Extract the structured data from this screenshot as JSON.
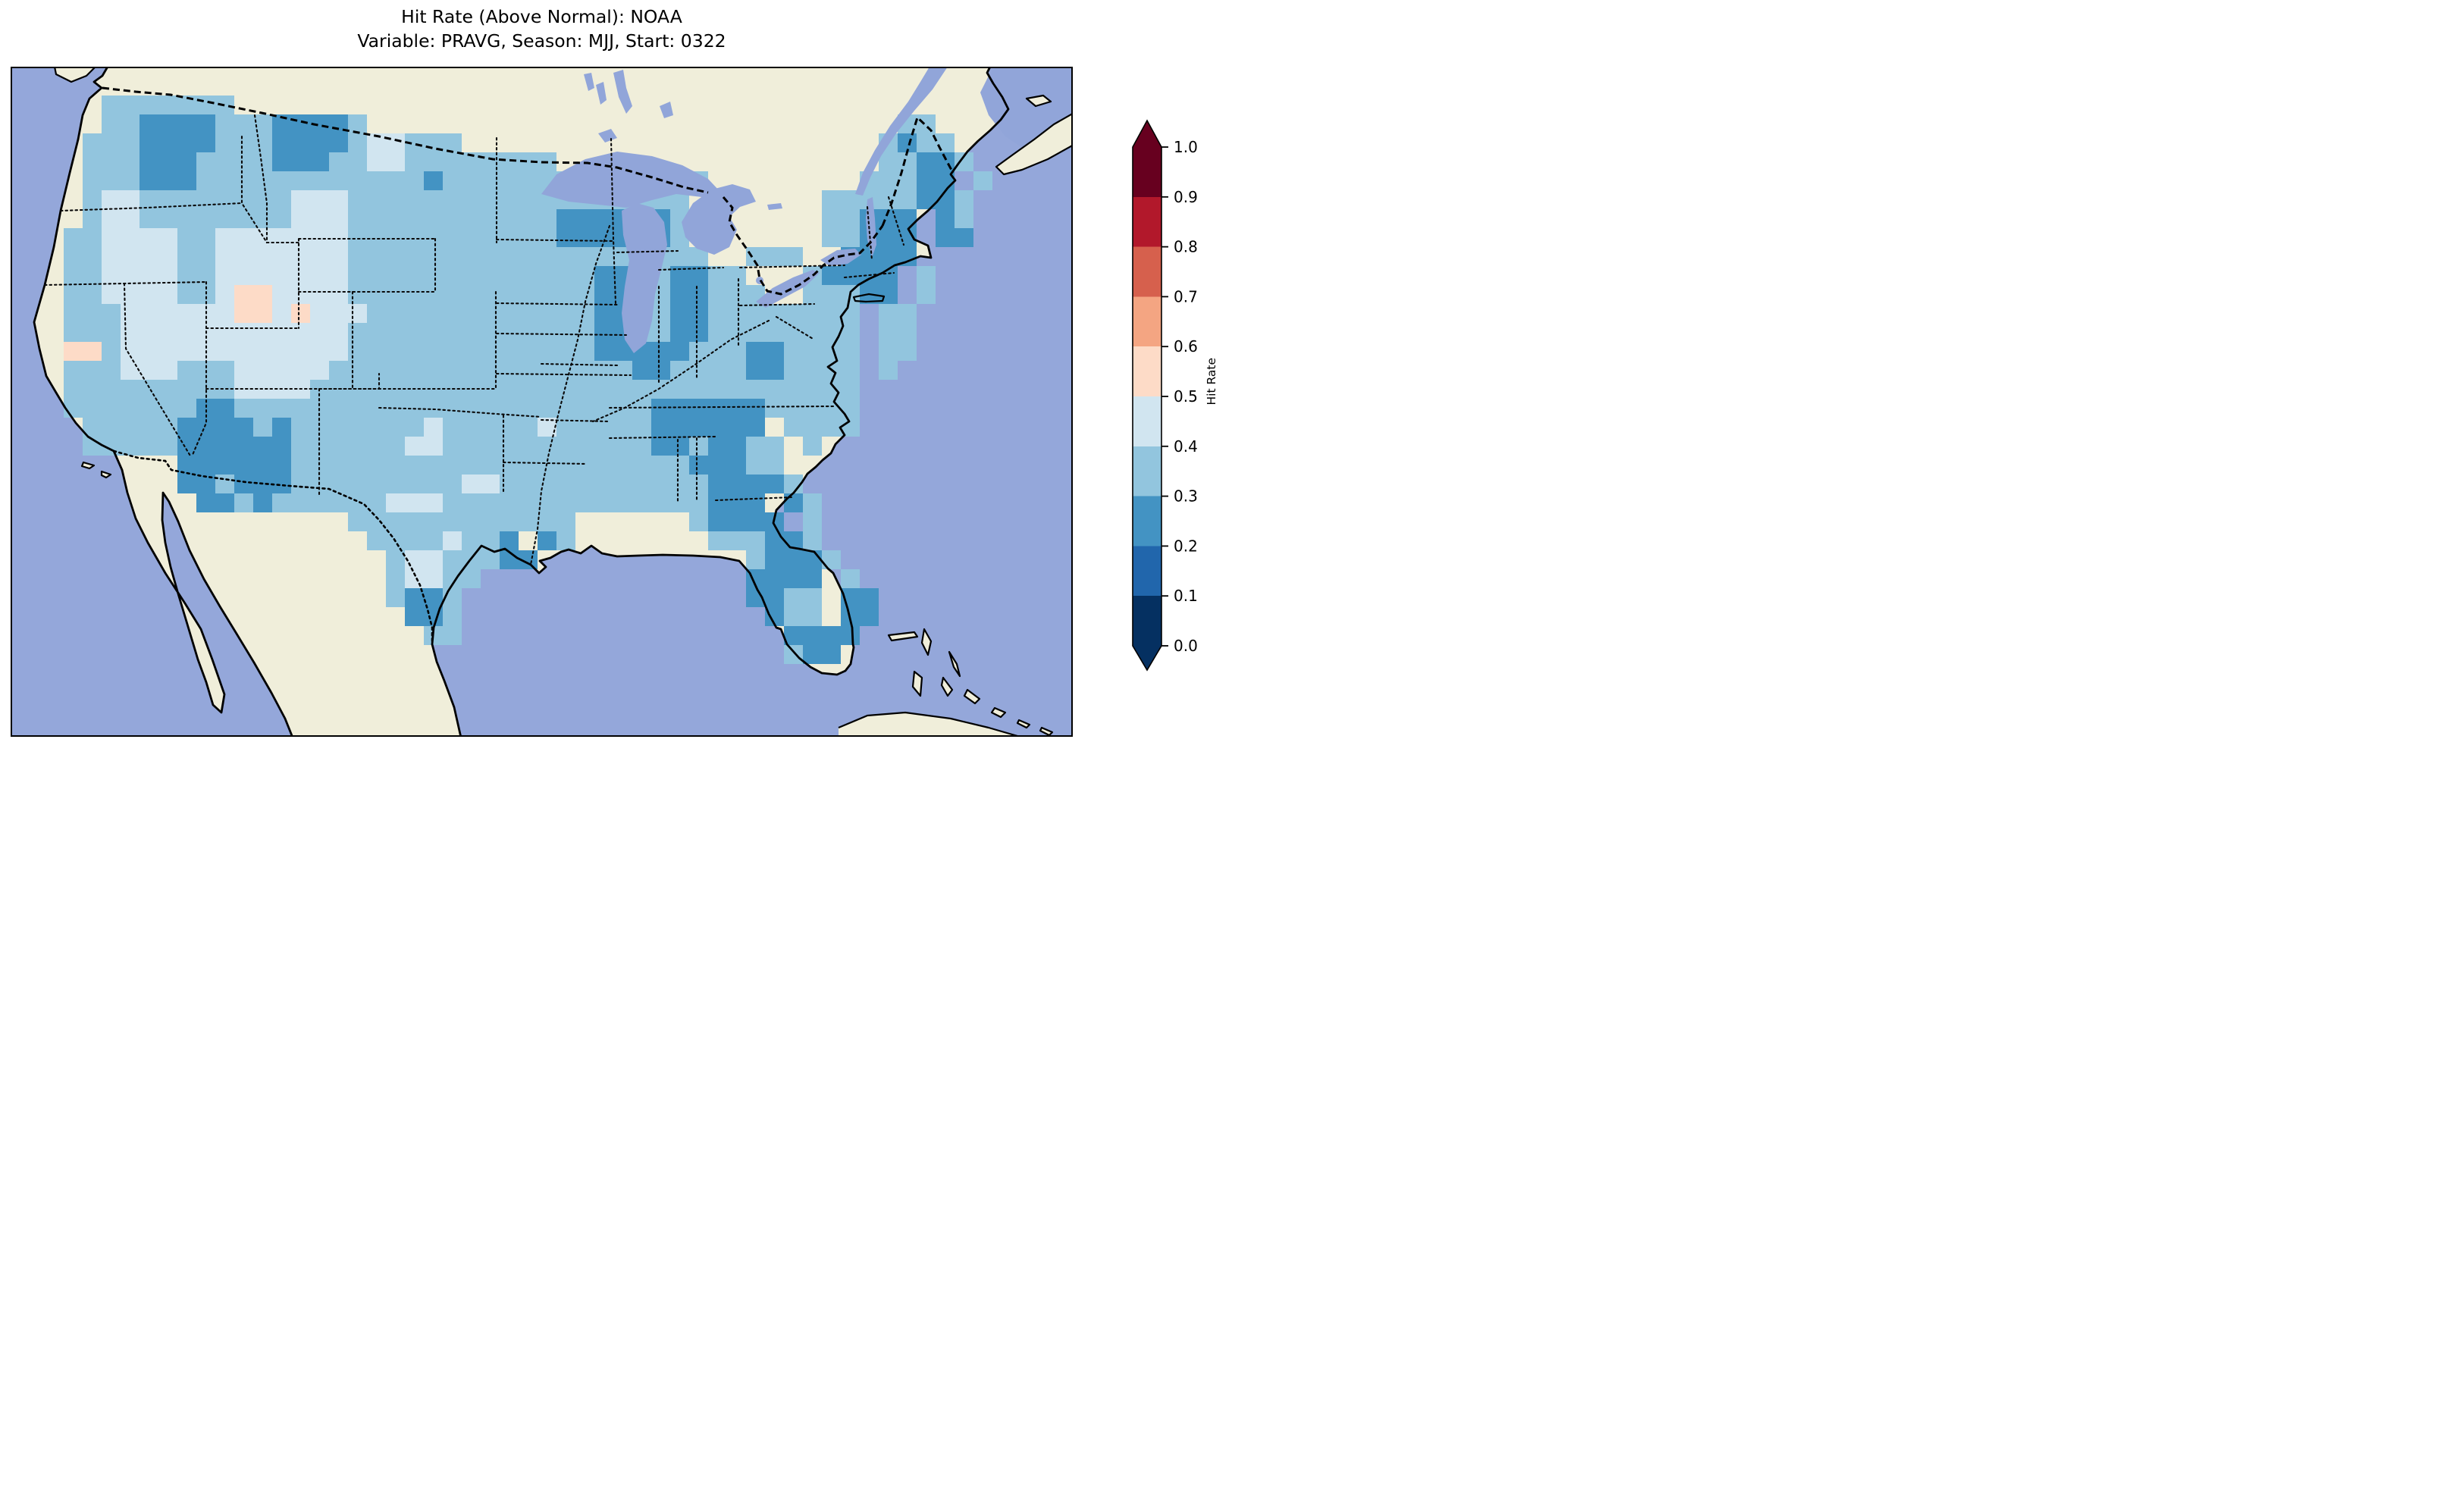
{
  "title": {
    "line1": "Hit Rate (Above Normal): NOAA",
    "line2": "Variable: PRAVG, Season: MJJ, Start: 0322"
  },
  "colorbar": {
    "label": "Hit Rate",
    "ticks": [
      "1.0",
      "0.9",
      "0.8",
      "0.7",
      "0.6",
      "0.5",
      "0.4",
      "0.3",
      "0.2",
      "0.1",
      "0.0"
    ],
    "under_color": "#053061",
    "over_color": "#67001f"
  },
  "map": {
    "ocean_color": "#94a7da",
    "land_color": "#f0eeda",
    "lake_color": "#91a5d9",
    "coast_color": "#000000",
    "cell_size": 25,
    "grid_origin": [
      70,
      38
    ],
    "cell_palette": {
      "2": "#4393c3",
      "3": "#92c5de",
      "4": "#d1e5f0",
      "5": "#fddbc7"
    }
  },
  "chart_data": {
    "type": "heatmap",
    "title": "Hit Rate (Above Normal): NOAA",
    "subtitle": "Variable: PRAVG, Season: MJJ, Start: 0322",
    "colorbar_label": "Hit Rate",
    "levels": [
      0.0,
      0.1,
      0.2,
      0.3,
      0.4,
      0.5,
      0.6,
      0.7,
      0.8,
      0.9,
      1.0
    ],
    "level_colors": [
      "#053061",
      "#2166ac",
      "#4393c3",
      "#92c5de",
      "#d1e5f0",
      "#fddbc7",
      "#f4a582",
      "#d6604d",
      "#b2182b",
      "#67001f"
    ],
    "extend_colors": {
      "under": "#053061",
      "over": "#67001f"
    },
    "value_bins": {
      "2": "0.2-0.3",
      "3": "0.3-0.4",
      "4": "0.4-0.5",
      "5": "0.5-0.6"
    },
    "no_data_char": ".",
    "legend_note": "grid chars map to hit-rate bins over CONUS, '.' = outside domain",
    "grid": [
      "..3333333.........................................",
      "..33222233322223............................33....",
      ".33322223332222344333......................3233...",
      ".3332223333222334433333333.................33223..",
      ".333222333333333333233333333333333........33322 3..",
      ".34433333333444333333333333333333.......33333223..",
      ".34433333333444333333333332222223.......33222 23..",
      "334444334444444333333333332222223.......33222 22..",
      "3344443344444443333333333333333333..333..2222 ....",
      "334444334444444333333333333322332233...32222 3....",
      "3344443345544443333333333333223322333..33322 3....",
      "333444444554544433333333333322332233333333 33.....",
      "333444444444444333333333333322332233333333 33.....",
      "553444444444444333333333333322222333223333 33.....",
      "333444333444443333333333333333223333223333 3......",
      "333333333444433333333333333333333333333333 .......",
      "333333322333333333333333333333322222233333 .......",
      ".333332222323333333433333433333222222 3333.......",
      ".3333322222233333344333333333332232233 3..........",
      "......22222233333333333333333333322233 ...........",
      "......223222333333333443333333333322223 ..........",
      ".......223233333344433333333333333222 23..........",
      "...............333333333333......32222 3..........",
      "................33334332 23.......333223..........",
      ".................34433322.......... 32223.........",
      ".................34433..............2222 3........",
      ".................3223...............2233 22.......",
      "..................223................233 22.......",
      "...................33.................2222 .......",
      "......................................322........."
    ]
  }
}
